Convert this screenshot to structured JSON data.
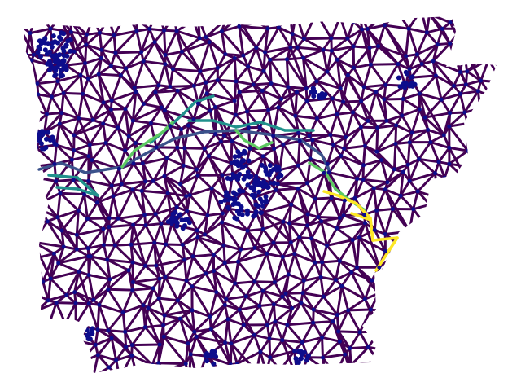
{
  "figure": {
    "kind": "triangulated network graph",
    "background": "#ffffff",
    "node_color": "#0d0d8c",
    "edge_colormap": "viridis",
    "colors": {
      "low": "#440154",
      "low_mid": "#3b528b",
      "mid": "#21918c",
      "high_mid": "#5ec962",
      "high": "#fde725"
    },
    "axes_visible": false,
    "text_labels": []
  }
}
